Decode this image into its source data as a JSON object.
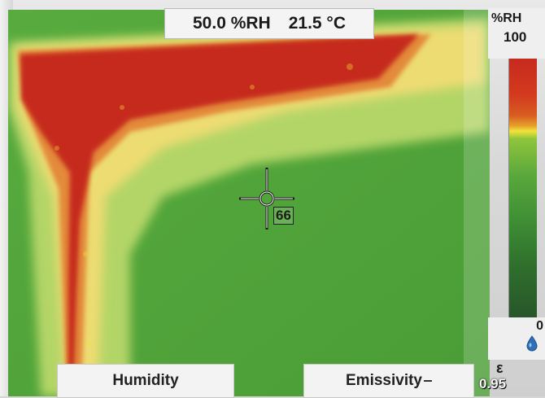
{
  "readout": {
    "humidity": "50.0 %RH",
    "temperature": "21.5 °C"
  },
  "scale": {
    "unit": "%RH",
    "max": "100",
    "min": "0",
    "min_icon": "water-drop-icon"
  },
  "spot": {
    "value": "66"
  },
  "softkeys": {
    "left": "Humidity",
    "right": "Emissivity"
  },
  "emissivity": {
    "symbol": "ε",
    "value": "0.95"
  },
  "colors": {
    "wet": "#c62a1e",
    "transition": "#f3e33a",
    "dry": "#4fa33a"
  }
}
